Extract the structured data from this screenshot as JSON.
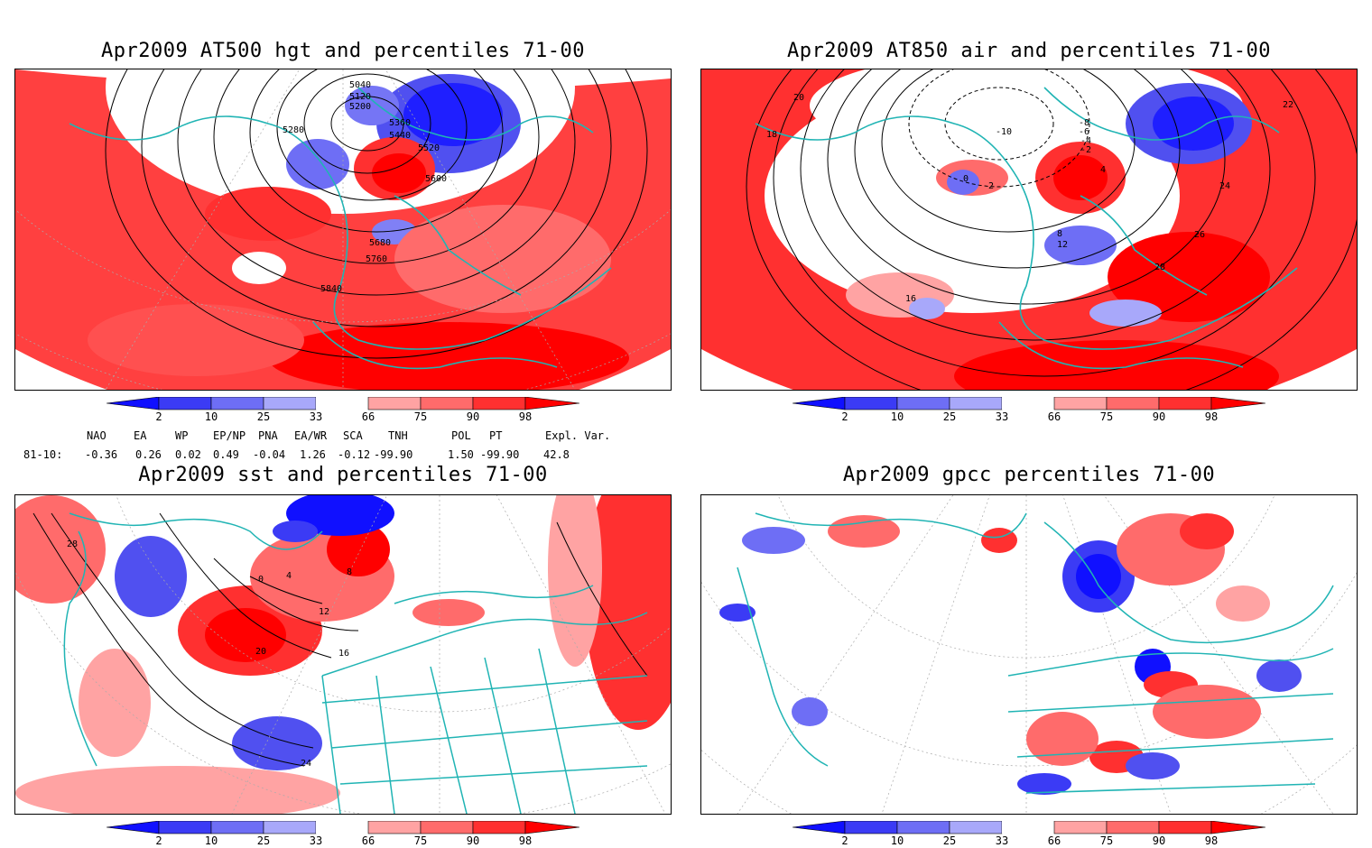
{
  "panels": [
    {
      "id": "hgt",
      "title": "Apr2009 AT500 hgt and percentiles 71-00",
      "contour_labels": [
        "5040",
        "5120",
        "5200",
        "5280",
        "5360",
        "5440",
        "5520",
        "5600",
        "5680",
        "5760",
        "5840"
      ]
    },
    {
      "id": "air",
      "title": "Apr2009 AT850 air and percentiles 71-00",
      "contour_labels": [
        "-10",
        "-8",
        "-6",
        "-4",
        "-2",
        "0",
        "2",
        "4",
        "8",
        "12",
        "16",
        "18",
        "20",
        "22",
        "24",
        "26",
        "28"
      ]
    },
    {
      "id": "sst",
      "title": "Apr2009 sst and percentiles 71-00",
      "contour_labels": [
        "0",
        "4",
        "8",
        "12",
        "16",
        "20",
        "24",
        "28"
      ]
    },
    {
      "id": "gpcc",
      "title": "Apr2009 gpcc percentiles 71-00",
      "contour_labels": []
    }
  ],
  "colorbar": {
    "tick_labels": [
      "2",
      "10",
      "25",
      "33",
      "66",
      "75",
      "90",
      "98"
    ],
    "colors": {
      "below_2": "#1010ff",
      "2_10": "#3b3bf5",
      "10_25": "#6e6ef5",
      "25_33": "#a8a8fa",
      "33_66": "#ffffff",
      "66_75": "#ffa3a3",
      "75_90": "#ff6b6b",
      "90_98": "#ff3030",
      "above_98": "#ff0000"
    }
  },
  "indices": {
    "row_label": "81-10:",
    "headers": [
      "NAO",
      "EA",
      "WP",
      "EP/NP",
      "PNA",
      "EA/WR",
      "SCA",
      "TNH",
      "POL",
      "PT",
      "Expl. Var."
    ],
    "values": [
      "-0.36",
      "0.26",
      "0.02",
      "0.49",
      "-0.04",
      "1.26",
      "-0.12",
      "-99.90",
      "1.50",
      "-99.90",
      "42.8"
    ]
  },
  "map_colors": {
    "coastline": "#20b4b4",
    "graticule": "#999999",
    "contour": "#000000"
  }
}
